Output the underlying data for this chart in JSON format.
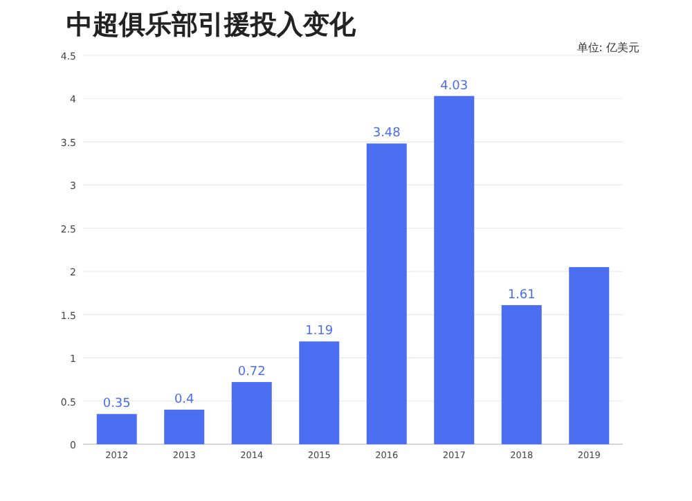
{
  "chart_data": {
    "type": "bar",
    "title": "中超俱乐部引援投入变化",
    "annotations": [
      "单位: 亿美元"
    ],
    "categories": [
      "2012",
      "2013",
      "2014",
      "2015",
      "2016",
      "2017",
      "2018",
      "2019"
    ],
    "values": [
      0.35,
      0.4,
      0.72,
      1.19,
      3.48,
      4.03,
      1.61,
      2.05
    ],
    "value_labels": [
      "0.35",
      "0.4",
      "0.72",
      "1.19",
      "3.48",
      "4.03",
      "1.61",
      null
    ],
    "color": "#4c6ef0",
    "ylim": [
      0,
      4.5
    ],
    "yticks": [
      0,
      0.5,
      1,
      1.5,
      2,
      2.5,
      3,
      3.5,
      4,
      4.5
    ],
    "grid": "y"
  }
}
